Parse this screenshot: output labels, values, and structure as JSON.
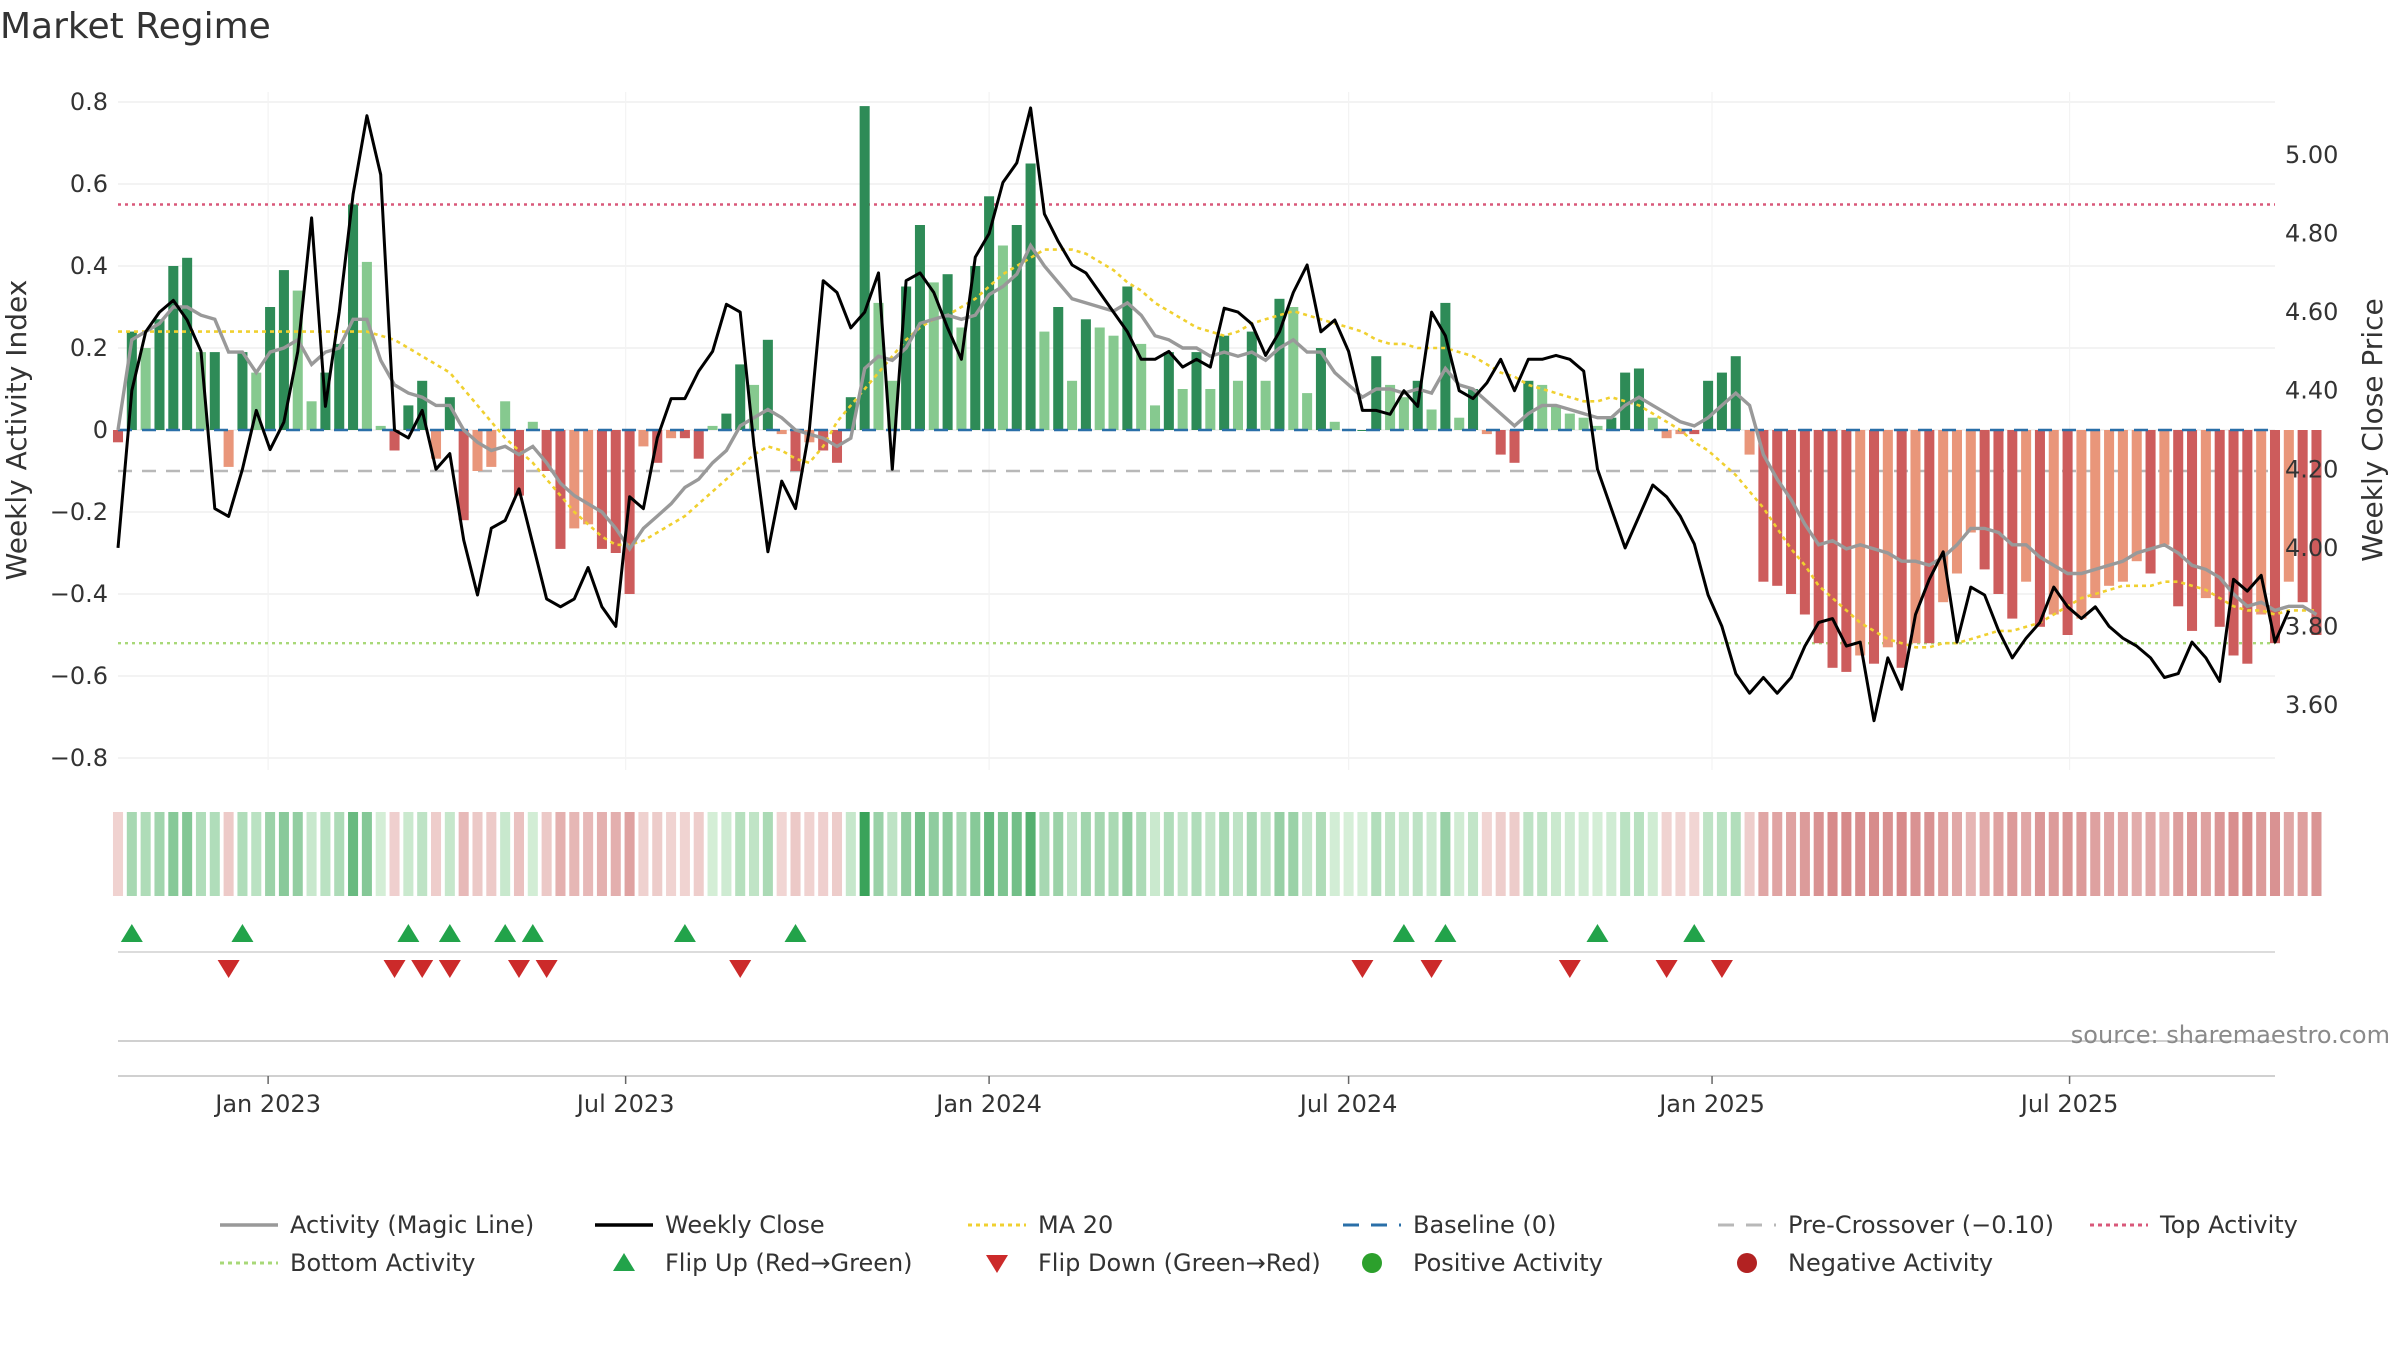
{
  "chart_data": {
    "type": "bar",
    "title": "Market Regime",
    "ylabel_left": "Weekly Activity Index",
    "ylabel_right": "Weekly Close Price",
    "source": "source: sharemaestro.com",
    "x_start": "2022-10-17",
    "x_end": "2025-10-13",
    "x_interval_days": 7,
    "x_ticks": [
      {
        "date": "2023-01-01",
        "label": "Jan 2023"
      },
      {
        "date": "2023-07-01",
        "label": "Jul 2023"
      },
      {
        "date": "2024-01-01",
        "label": "Jan 2024"
      },
      {
        "date": "2024-07-01",
        "label": "Jul 2024"
      },
      {
        "date": "2025-01-01",
        "label": "Jan 2025"
      },
      {
        "date": "2025-07-01",
        "label": "Jul 2025"
      }
    ],
    "y_left": {
      "min": -0.8,
      "max": 0.8,
      "ticks": [
        0.8,
        0.6,
        0.4,
        0.2,
        0,
        -0.2,
        -0.4,
        -0.6,
        -0.8
      ],
      "tick_labels": [
        "0.8",
        "0.6",
        "0.4",
        "0.2",
        "0",
        "−0.2",
        "−0.4",
        "−0.6",
        "−0.8"
      ]
    },
    "y_right": {
      "min": 3.6,
      "max": 5.0,
      "ticks": [
        5.0,
        4.8,
        4.6,
        4.4,
        4.2,
        4.0,
        3.8,
        3.6
      ],
      "tick_labels": [
        "5.00",
        "4.80",
        "4.60",
        "4.40",
        "4.20",
        "4.00",
        "3.80",
        "3.60"
      ]
    },
    "grid": true,
    "reference_lines": {
      "top_activity": 0.55,
      "bottom_activity": -0.52,
      "baseline": 0,
      "pre_crossover": -0.1
    },
    "colors": {
      "pos_dark": "#2e8b57",
      "pos_light": "#86c98f",
      "neg_dark": "#cd5c5c",
      "neg_light": "#e9967a",
      "magic_line": "#999999",
      "close_line": "#000000",
      "ma20": "#f0d030",
      "baseline": "#2a6fa8",
      "pre_crossover": "#b8b8b8",
      "top_activity": "#d9587a",
      "bottom_activity": "#a8d878",
      "flip_up": "#22a34a",
      "flip_down": "#cc2a2a",
      "pos_marker": "#2ca02c",
      "neg_marker": "#b22222"
    },
    "activity": [
      -0.03,
      0.24,
      0.2,
      0.27,
      0.4,
      0.42,
      0.19,
      0.19,
      -0.09,
      0.19,
      0.14,
      0.3,
      0.39,
      0.34,
      0.07,
      0.14,
      0.21,
      0.55,
      0.41,
      0.01,
      -0.05,
      0.06,
      0.12,
      -0.07,
      0.08,
      -0.22,
      -0.1,
      -0.09,
      0.07,
      -0.16,
      0.02,
      -0.1,
      -0.29,
      -0.24,
      -0.23,
      -0.29,
      -0.3,
      -0.4,
      -0.04,
      -0.08,
      -0.02,
      -0.02,
      -0.07,
      0.01,
      0.04,
      0.16,
      0.11,
      0.22,
      -0.01,
      -0.1,
      -0.03,
      -0.05,
      -0.08,
      0.08,
      0.79,
      0.31,
      0.12,
      0.35,
      0.5,
      0.36,
      0.38,
      0.25,
      0.4,
      0.57,
      0.45,
      0.5,
      0.65,
      0.24,
      0.3,
      0.12,
      0.27,
      0.25,
      0.23,
      0.35,
      0.21,
      0.06,
      0.19,
      0.1,
      0.19,
      0.1,
      0.23,
      0.12,
      0.24,
      0.12,
      0.32,
      0.3,
      0.09,
      0.2,
      0.02,
      0.0,
      0.0,
      0.18,
      0.11,
      0.08,
      0.12,
      0.05,
      0.31,
      0.03,
      0.1,
      -0.01,
      -0.06,
      -0.08,
      0.12,
      0.11,
      0.06,
      0.04,
      0.03,
      0.01,
      0.03,
      0.14,
      0.15,
      0.03,
      -0.02,
      -0.01,
      -0.01,
      0.12,
      0.14,
      0.18,
      -0.06,
      -0.37,
      -0.38,
      -0.4,
      -0.45,
      -0.52,
      -0.58,
      -0.59,
      -0.55,
      -0.57,
      -0.53,
      -0.58,
      -0.52,
      -0.52,
      -0.42,
      -0.35,
      -0.25,
      -0.34,
      -0.4,
      -0.46,
      -0.37,
      -0.48,
      -0.45,
      -0.5,
      -0.46,
      -0.41,
      -0.38,
      -0.37,
      -0.32,
      -0.35,
      -0.28,
      -0.43,
      -0.49,
      -0.41,
      -0.48,
      -0.55,
      -0.57,
      -0.45,
      -0.52,
      -0.37,
      -0.42,
      -0.5
    ],
    "magic_line": [
      0.0,
      0.22,
      0.24,
      0.26,
      0.3,
      0.3,
      0.28,
      0.27,
      0.19,
      0.19,
      0.14,
      0.19,
      0.2,
      0.22,
      0.16,
      0.19,
      0.2,
      0.27,
      0.27,
      0.17,
      0.11,
      0.09,
      0.08,
      0.06,
      0.06,
      0.0,
      -0.03,
      -0.05,
      -0.04,
      -0.06,
      -0.04,
      -0.08,
      -0.13,
      -0.16,
      -0.18,
      -0.2,
      -0.24,
      -0.29,
      -0.24,
      -0.21,
      -0.18,
      -0.14,
      -0.12,
      -0.08,
      -0.05,
      0.01,
      0.03,
      0.05,
      0.03,
      0.0,
      -0.01,
      -0.02,
      -0.04,
      -0.02,
      0.15,
      0.18,
      0.17,
      0.2,
      0.26,
      0.27,
      0.28,
      0.27,
      0.28,
      0.33,
      0.35,
      0.38,
      0.45,
      0.4,
      0.36,
      0.32,
      0.31,
      0.3,
      0.29,
      0.31,
      0.28,
      0.23,
      0.22,
      0.2,
      0.2,
      0.18,
      0.19,
      0.18,
      0.19,
      0.17,
      0.2,
      0.22,
      0.19,
      0.19,
      0.14,
      0.11,
      0.08,
      0.1,
      0.1,
      0.09,
      0.1,
      0.09,
      0.15,
      0.11,
      0.1,
      0.07,
      0.04,
      0.01,
      0.04,
      0.06,
      0.06,
      0.05,
      0.04,
      0.03,
      0.03,
      0.06,
      0.08,
      0.06,
      0.04,
      0.02,
      0.01,
      0.03,
      0.06,
      0.09,
      0.06,
      -0.06,
      -0.12,
      -0.17,
      -0.23,
      -0.28,
      -0.27,
      -0.29,
      -0.28,
      -0.29,
      -0.3,
      -0.32,
      -0.32,
      -0.33,
      -0.31,
      -0.28,
      -0.24,
      -0.24,
      -0.25,
      -0.28,
      -0.28,
      -0.31,
      -0.33,
      -0.35,
      -0.35,
      -0.34,
      -0.33,
      -0.32,
      -0.3,
      -0.29,
      -0.28,
      -0.3,
      -0.33,
      -0.34,
      -0.36,
      -0.4,
      -0.43,
      -0.42,
      -0.44,
      -0.43,
      -0.43,
      -0.45
    ],
    "weekly_close": [
      4.0,
      4.4,
      4.55,
      4.6,
      4.63,
      4.58,
      4.5,
      4.1,
      4.08,
      4.2,
      4.35,
      4.25,
      4.32,
      4.5,
      4.84,
      4.36,
      4.6,
      4.9,
      5.1,
      4.95,
      4.3,
      4.28,
      4.35,
      4.2,
      4.24,
      4.02,
      3.88,
      4.05,
      4.07,
      4.15,
      4.01,
      3.87,
      3.85,
      3.87,
      3.95,
      3.85,
      3.8,
      4.13,
      4.1,
      4.28,
      4.38,
      4.38,
      4.45,
      4.5,
      4.62,
      4.6,
      4.26,
      3.99,
      4.17,
      4.1,
      4.3,
      4.68,
      4.65,
      4.56,
      4.6,
      4.7,
      4.2,
      4.68,
      4.7,
      4.65,
      4.56,
      4.48,
      4.74,
      4.8,
      4.93,
      4.98,
      5.12,
      4.85,
      4.78,
      4.72,
      4.7,
      4.65,
      4.6,
      4.55,
      4.48,
      4.48,
      4.5,
      4.46,
      4.48,
      4.46,
      4.61,
      4.6,
      4.57,
      4.49,
      4.55,
      4.65,
      4.72,
      4.55,
      4.58,
      4.5,
      4.35,
      4.35,
      4.34,
      4.4,
      4.36,
      4.6,
      4.54,
      4.4,
      4.38,
      4.42,
      4.48,
      4.4,
      4.48,
      4.48,
      4.49,
      4.48,
      4.45,
      4.2,
      4.1,
      4.0,
      4.08,
      4.16,
      4.13,
      4.08,
      4.01,
      3.88,
      3.8,
      3.68,
      3.63,
      3.67,
      3.63,
      3.67,
      3.75,
      3.81,
      3.82,
      3.75,
      3.76,
      3.56,
      3.72,
      3.64,
      3.83,
      3.92,
      3.99,
      3.76,
      3.9,
      3.88,
      3.79,
      3.72,
      3.77,
      3.81,
      3.9,
      3.85,
      3.82,
      3.85,
      3.8,
      3.77,
      3.75,
      3.72,
      3.67,
      3.68,
      3.76,
      3.72,
      3.66,
      3.92,
      3.89,
      3.93,
      3.76,
      3.84
    ],
    "ma20": [
      0.24,
      0.24,
      0.24,
      0.24,
      0.24,
      0.24,
      0.24,
      0.24,
      0.24,
      0.24,
      0.24,
      0.24,
      0.24,
      0.24,
      0.24,
      0.24,
      0.24,
      0.24,
      0.24,
      0.23,
      0.22,
      0.2,
      0.18,
      0.16,
      0.14,
      0.1,
      0.06,
      0.02,
      -0.02,
      -0.05,
      -0.08,
      -0.12,
      -0.16,
      -0.2,
      -0.23,
      -0.26,
      -0.28,
      -0.28,
      -0.27,
      -0.25,
      -0.23,
      -0.21,
      -0.18,
      -0.15,
      -0.12,
      -0.09,
      -0.06,
      -0.04,
      -0.05,
      -0.07,
      -0.08,
      -0.04,
      0.02,
      0.06,
      0.1,
      0.14,
      0.18,
      0.22,
      0.25,
      0.27,
      0.28,
      0.3,
      0.32,
      0.35,
      0.38,
      0.4,
      0.42,
      0.44,
      0.44,
      0.44,
      0.43,
      0.41,
      0.39,
      0.36,
      0.34,
      0.31,
      0.29,
      0.27,
      0.25,
      0.24,
      0.23,
      0.24,
      0.26,
      0.27,
      0.28,
      0.29,
      0.28,
      0.27,
      0.26,
      0.25,
      0.24,
      0.22,
      0.21,
      0.21,
      0.2,
      0.2,
      0.2,
      0.19,
      0.18,
      0.16,
      0.14,
      0.13,
      0.11,
      0.1,
      0.09,
      0.08,
      0.07,
      0.07,
      0.08,
      0.07,
      0.06,
      0.04,
      0.02,
      0.0,
      -0.03,
      -0.05,
      -0.08,
      -0.11,
      -0.15,
      -0.19,
      -0.24,
      -0.29,
      -0.33,
      -0.38,
      -0.41,
      -0.44,
      -0.47,
      -0.49,
      -0.51,
      -0.52,
      -0.53,
      -0.53,
      -0.52,
      -0.52,
      -0.51,
      -0.5,
      -0.49,
      -0.49,
      -0.48,
      -0.47,
      -0.45,
      -0.43,
      -0.41,
      -0.4,
      -0.39,
      -0.38,
      -0.38,
      -0.38,
      -0.37,
      -0.37,
      -0.38,
      -0.39,
      -0.41,
      -0.43,
      -0.44,
      -0.44,
      -0.45,
      -0.44,
      -0.44,
      -0.44
    ],
    "flip_up_weeks": [
      1,
      9,
      21,
      24,
      28,
      30,
      41,
      49,
      93,
      96,
      107,
      114
    ],
    "flip_down_weeks": [
      8,
      20,
      22,
      24,
      29,
      31,
      45,
      90,
      95,
      105,
      112,
      116
    ],
    "legend": [
      {
        "label": "Activity (Magic Line)",
        "style": "line",
        "color": "#999999"
      },
      {
        "label": "Weekly Close",
        "style": "line",
        "color": "#000000"
      },
      {
        "label": "MA 20",
        "style": "dotted",
        "color": "#f0d030"
      },
      {
        "label": "Baseline (0)",
        "style": "dashed",
        "color": "#2a6fa8"
      },
      {
        "label": "Pre-Crossover (−0.10)",
        "style": "dashed",
        "color": "#b8b8b8"
      },
      {
        "label": "Top Activity",
        "style": "dotted",
        "color": "#d9587a"
      },
      {
        "label": "Bottom Activity",
        "style": "dotted",
        "color": "#a8d878"
      },
      {
        "label": "Flip Up (Red→Green)",
        "style": "tri-up",
        "color": "#22a34a"
      },
      {
        "label": "Flip Down (Green→Red)",
        "style": "tri-down",
        "color": "#cc2a2a"
      },
      {
        "label": "Positive Activity",
        "style": "dot",
        "color": "#2ca02c"
      },
      {
        "label": "Negative Activity",
        "style": "dot",
        "color": "#b22222"
      }
    ]
  }
}
